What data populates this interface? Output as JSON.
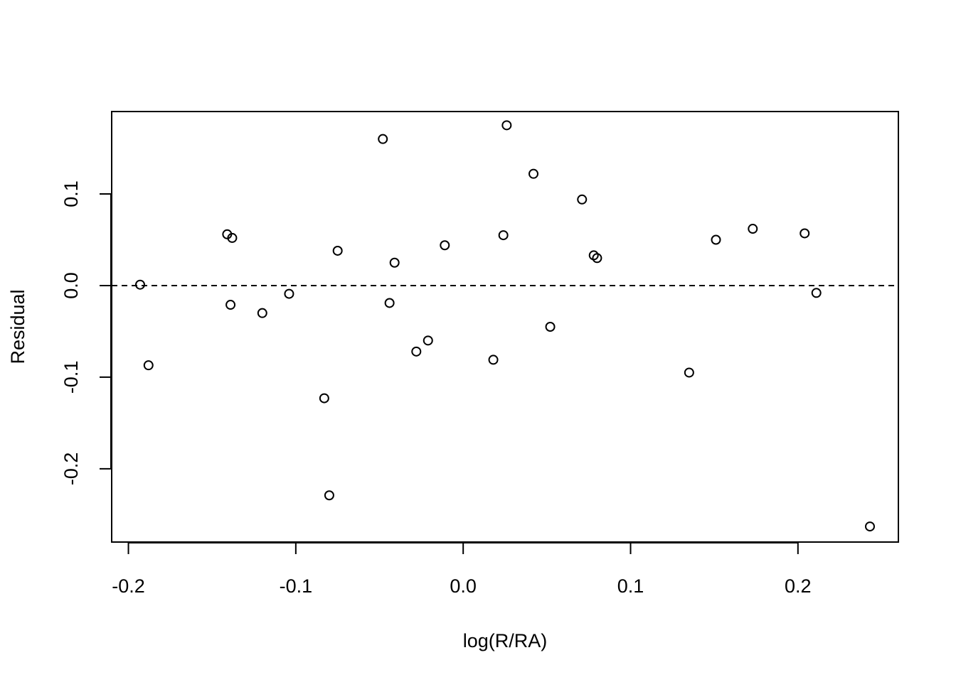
{
  "chart_data": {
    "type": "scatter",
    "title": "",
    "xlabel": "log(R/RA)",
    "ylabel": "Residual",
    "xlim": [
      -0.21,
      0.26
    ],
    "ylim": [
      -0.28,
      0.19
    ],
    "x_ticks": [
      "-0.2",
      "-0.1",
      "0.0",
      "0.1",
      "0.2"
    ],
    "y_ticks": [
      "-0.2",
      "-0.1",
      "0.0",
      "0.1"
    ],
    "reference_line": {
      "y": 0.0,
      "style": "dashed"
    },
    "grid": false,
    "marker": "open-circle",
    "points": [
      {
        "x": -0.193,
        "y": 0.001
      },
      {
        "x": -0.188,
        "y": -0.087
      },
      {
        "x": -0.141,
        "y": 0.056
      },
      {
        "x": -0.139,
        "y": -0.021
      },
      {
        "x": -0.138,
        "y": 0.052
      },
      {
        "x": -0.12,
        "y": -0.03
      },
      {
        "x": -0.104,
        "y": -0.009
      },
      {
        "x": -0.083,
        "y": -0.123
      },
      {
        "x": -0.08,
        "y": -0.229
      },
      {
        "x": -0.075,
        "y": 0.038
      },
      {
        "x": -0.048,
        "y": 0.16
      },
      {
        "x": -0.044,
        "y": -0.019
      },
      {
        "x": -0.041,
        "y": 0.025
      },
      {
        "x": -0.028,
        "y": -0.072
      },
      {
        "x": -0.021,
        "y": -0.06
      },
      {
        "x": -0.011,
        "y": 0.044
      },
      {
        "x": 0.018,
        "y": -0.081
      },
      {
        "x": 0.024,
        "y": 0.055
      },
      {
        "x": 0.026,
        "y": 0.175
      },
      {
        "x": 0.042,
        "y": 0.122
      },
      {
        "x": 0.052,
        "y": -0.045
      },
      {
        "x": 0.071,
        "y": 0.094
      },
      {
        "x": 0.078,
        "y": 0.033
      },
      {
        "x": 0.08,
        "y": 0.03
      },
      {
        "x": 0.135,
        "y": -0.095
      },
      {
        "x": 0.151,
        "y": 0.05
      },
      {
        "x": 0.173,
        "y": 0.062
      },
      {
        "x": 0.204,
        "y": 0.057
      },
      {
        "x": 0.211,
        "y": -0.008
      },
      {
        "x": 0.243,
        "y": -0.263
      }
    ]
  }
}
